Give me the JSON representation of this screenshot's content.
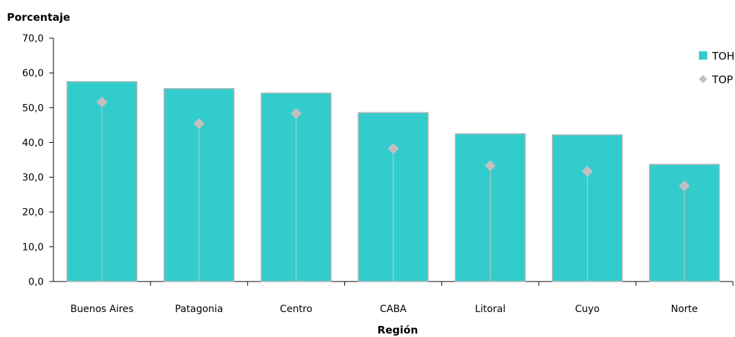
{
  "chart_data": {
    "type": "bar",
    "title": "",
    "xlabel": "Región",
    "ylabel": "Porcentaje",
    "categories": [
      "Buenos Aires",
      "Patagonia",
      "Centro",
      "CABA",
      "Litoral",
      "Cuyo",
      "Norte"
    ],
    "series": [
      {
        "name": "TOH",
        "mark": "bar",
        "color": "#33CCCC",
        "values": [
          57.5,
          55.5,
          54.2,
          48.6,
          42.5,
          42.2,
          33.7
        ]
      },
      {
        "name": "TOP",
        "mark": "diamond-on-stem",
        "color": "#C0C0C0",
        "values": [
          51.6,
          45.4,
          48.3,
          38.2,
          33.3,
          31.7,
          27.5
        ]
      }
    ],
    "ylim": [
      0,
      70
    ],
    "yticks": [
      "0,0",
      "10,0",
      "20,0",
      "30,0",
      "40,0",
      "50,0",
      "60,0",
      "70,0"
    ],
    "grid": false,
    "legend_position": "top-right"
  }
}
